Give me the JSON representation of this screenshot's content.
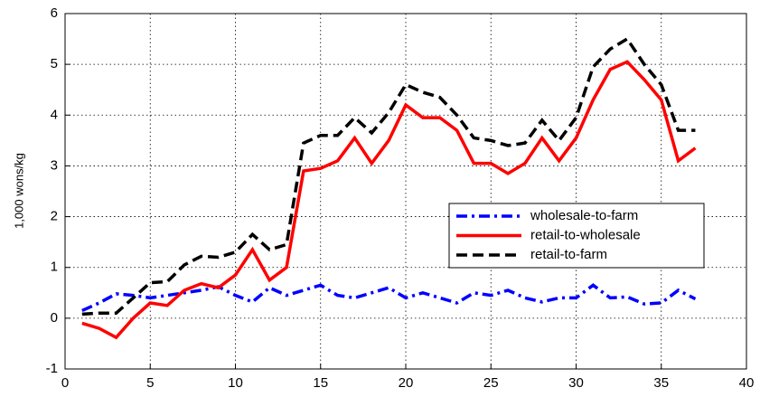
{
  "chart_data": {
    "type": "line",
    "ylabel": "1,000 wons/kg",
    "x": [
      1,
      2,
      3,
      4,
      5,
      6,
      7,
      8,
      9,
      10,
      11,
      12,
      13,
      14,
      15,
      16,
      17,
      18,
      19,
      20,
      21,
      22,
      23,
      24,
      25,
      26,
      27,
      28,
      29,
      30,
      31,
      32,
      33,
      34,
      35,
      36,
      37
    ],
    "series": [
      {
        "name": "wholesale-to-farm",
        "color": "#0000ff",
        "style": "dashdot",
        "values": [
          0.15,
          0.3,
          0.48,
          0.45,
          0.4,
          0.45,
          0.5,
          0.55,
          0.62,
          0.45,
          0.32,
          0.6,
          0.45,
          0.55,
          0.65,
          0.45,
          0.4,
          0.5,
          0.6,
          0.4,
          0.5,
          0.4,
          0.3,
          0.5,
          0.45,
          0.55,
          0.4,
          0.32,
          0.4,
          0.4,
          0.65,
          0.4,
          0.42,
          0.28,
          0.3,
          0.55,
          0.38
        ]
      },
      {
        "name": "retail-to-wholesale",
        "color": "#ff0000",
        "style": "solid",
        "values": [
          -0.1,
          -0.2,
          -0.38,
          0.0,
          0.3,
          0.25,
          0.55,
          0.68,
          0.6,
          0.85,
          1.35,
          0.75,
          1.0,
          2.9,
          2.95,
          3.1,
          3.55,
          3.05,
          3.5,
          4.2,
          3.95,
          3.95,
          3.7,
          3.05,
          3.05,
          2.85,
          3.05,
          3.55,
          3.1,
          3.55,
          4.3,
          4.9,
          5.05,
          4.7,
          4.3,
          3.1,
          3.35
        ]
      },
      {
        "name": "retail-to-farm",
        "color": "#000000",
        "style": "dashed",
        "values": [
          0.08,
          0.1,
          0.1,
          0.4,
          0.7,
          0.72,
          1.05,
          1.22,
          1.2,
          1.3,
          1.65,
          1.35,
          1.45,
          3.45,
          3.6,
          3.6,
          3.95,
          3.65,
          4.05,
          4.6,
          4.45,
          4.35,
          4.0,
          3.55,
          3.5,
          3.4,
          3.45,
          3.9,
          3.5,
          3.95,
          4.95,
          5.3,
          5.5,
          5.0,
          4.6,
          3.7,
          3.7
        ]
      }
    ],
    "xlim": [
      0,
      40
    ],
    "xticks": [
      0,
      5,
      10,
      15,
      20,
      25,
      30,
      35,
      40
    ],
    "ylim": [
      -1,
      6
    ],
    "yticks": [
      -1,
      0,
      1,
      2,
      3,
      4,
      5,
      6
    ],
    "grid": true,
    "legend": "right"
  }
}
